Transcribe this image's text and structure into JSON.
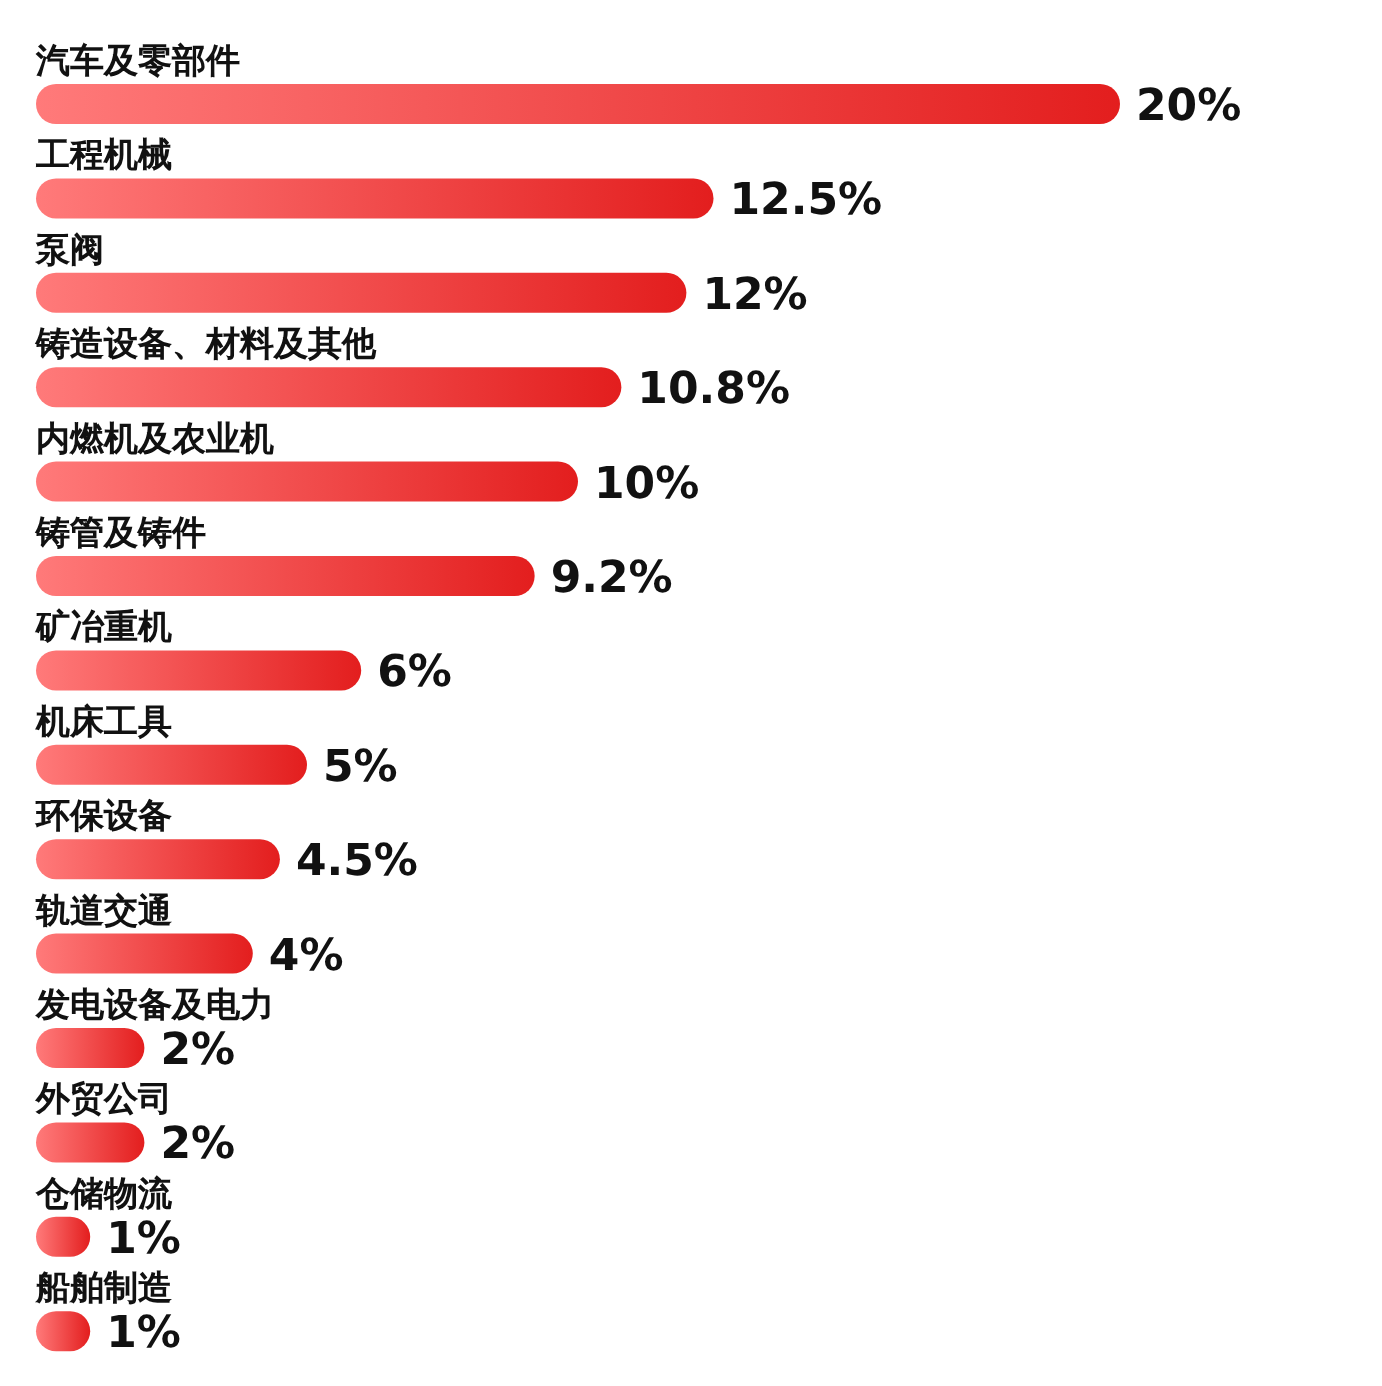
{
  "chart_data": {
    "type": "bar",
    "orientation": "horizontal",
    "color": "#e31e1e",
    "categories": [
      "汽车及零部件",
      "工程机械",
      "泵阀",
      "铸造设备、材料及其他",
      "内燃机及农业机",
      "铸管及铸件",
      "矿冶重机",
      "机床工具",
      "环保设备",
      "轨道交通",
      "发电设备及电力",
      "外贸公司",
      "仓储物流",
      "船舶制造"
    ],
    "values": [
      20,
      12.5,
      12,
      10.8,
      10,
      9.2,
      6,
      5,
      4.5,
      4,
      2,
      2,
      1,
      1
    ],
    "value_labels": [
      "20%",
      "12.5%",
      "12%",
      "10.8%",
      "10%",
      "9.2%",
      "6%",
      "5%",
      "4.5%",
      "4%",
      "2%",
      "2%",
      "1%",
      "1%"
    ]
  }
}
